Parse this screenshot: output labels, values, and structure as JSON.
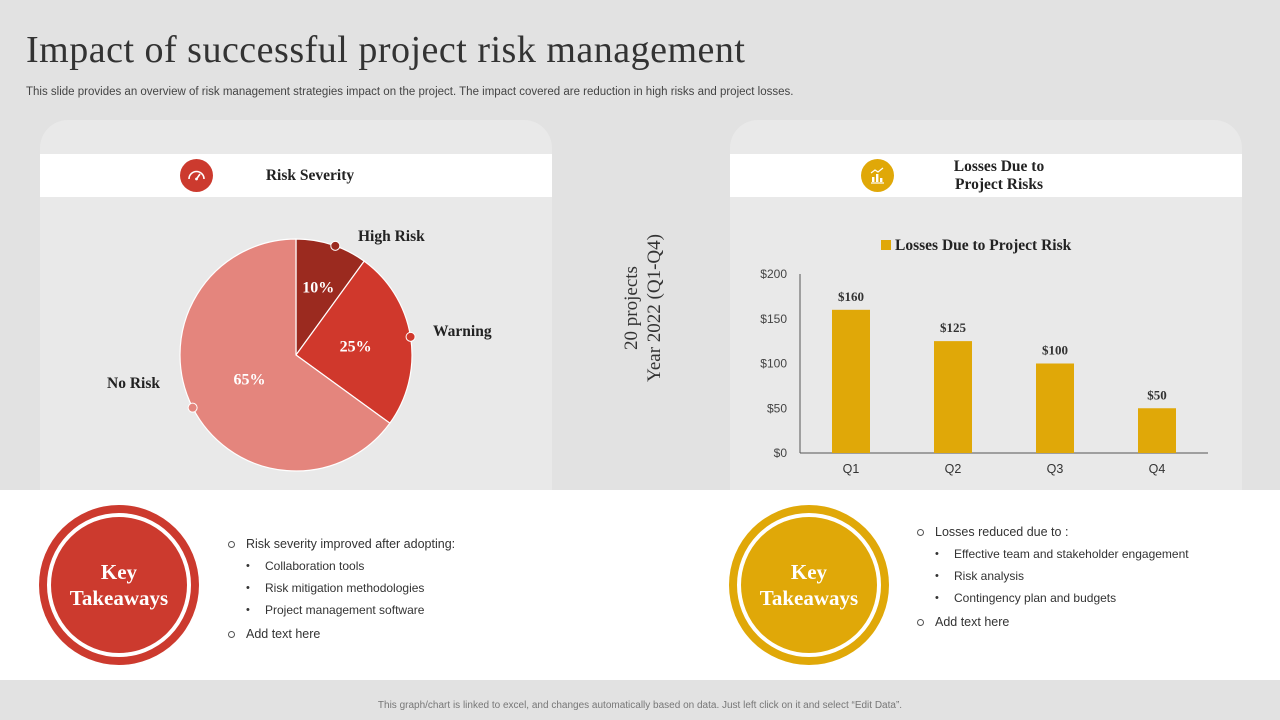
{
  "slide": {
    "title": "Impact of successful project risk management",
    "subtitle": "This slide provides an overview of risk management strategies impact on the project. The impact covered are reduction in high risks and project losses.",
    "side_label_line1": "20 projects",
    "side_label_line2": "Year 2022 (Q1-Q4)",
    "footer": "This graph/chart is linked to excel, and changes automatically based on data. Just left click on it and select “Edit Data”."
  },
  "left_panel": {
    "header": "Risk Severity",
    "icon": "speedometer-icon",
    "accent": "#cc3a2e"
  },
  "right_panel": {
    "header_line1": "Losses Due to",
    "header_line2": "Project Risks",
    "icon": "chart-icon",
    "accent": "#e0a808"
  },
  "chart_data": [
    {
      "type": "pie",
      "categories": [
        "High Risk",
        "Warning",
        "No Risk"
      ],
      "values": [
        10,
        25,
        65
      ],
      "data_labels": [
        "10%",
        "25%",
        "65%"
      ],
      "colors": [
        "#9b2a1f",
        "#d0382c",
        "#e4857d"
      ]
    },
    {
      "type": "bar",
      "categories": [
        "Q1",
        "Q2",
        "Q3",
        "Q4"
      ],
      "series": [
        {
          "name": "Losses Due to Project Risk",
          "values": [
            160,
            125,
            100,
            50
          ]
        }
      ],
      "data_labels": [
        "$160",
        "$125",
        "$100",
        "$50"
      ],
      "y_ticks": [
        "$0",
        "$50",
        "$100",
        "$150",
        "$200"
      ],
      "ylim": [
        0,
        200
      ],
      "legend": "top",
      "color": "#e0a808",
      "grid": false
    }
  ],
  "takeaways_left": {
    "badge": "Key\nTakeaways",
    "color": "#cc3a2e",
    "item1": "Risk severity improved  after adopting:",
    "subs": [
      "Collaboration tools",
      "Risk mitigation methodologies",
      "Project management software"
    ],
    "item2": "Add text here"
  },
  "takeaways_right": {
    "badge": "Key\nTakeaways",
    "color": "#e0a808",
    "item1": "Losses reduced due to :",
    "subs": [
      "Effective team and stakeholder engagement",
      "Risk analysis",
      "Contingency plan and budgets"
    ],
    "item2": "Add text here"
  }
}
